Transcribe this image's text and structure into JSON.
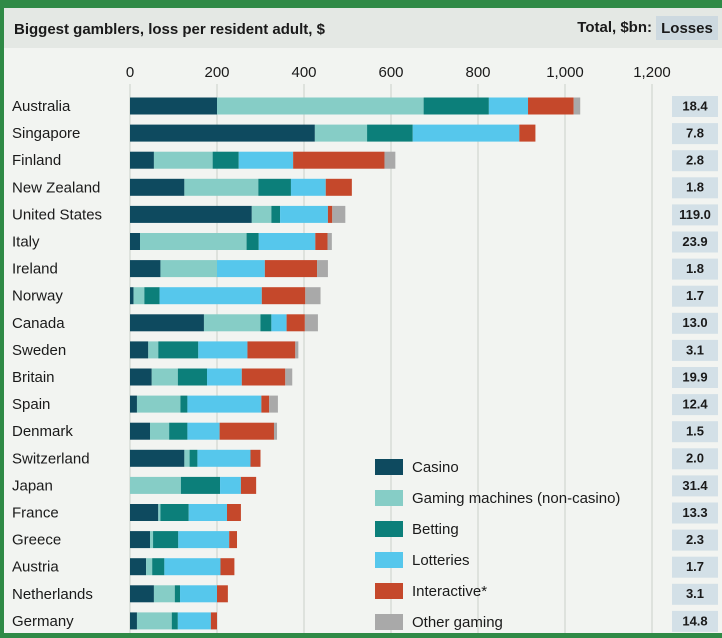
{
  "chart_data": {
    "type": "stacked-bar-horizontal",
    "title": "Biggest gamblers, loss per resident adult, $",
    "categories": [
      "Australia",
      "Singapore",
      "Finland",
      "New Zealand",
      "United States",
      "Italy",
      "Ireland",
      "Norway",
      "Canada",
      "Sweden",
      "Britain",
      "Spain",
      "Denmark",
      "Switzerland",
      "Japan",
      "France",
      "Greece",
      "Austria",
      "Netherlands",
      "Germany"
    ],
    "series": [
      {
        "name": "Casino",
        "color": "#0e4a5f",
        "values": [
          200,
          425,
          55,
          125,
          280,
          23,
          70,
          8,
          170,
          42,
          50,
          16,
          46,
          125,
          0,
          65,
          46,
          37,
          55,
          16
        ]
      },
      {
        "name": "Gaming machines (non-casino)",
        "color": "#86cdc6",
        "values": [
          475,
          120,
          135,
          170,
          45,
          245,
          130,
          25,
          130,
          23,
          60,
          100,
          44,
          12,
          117,
          5,
          7,
          14,
          48,
          80
        ]
      },
      {
        "name": "Betting",
        "color": "#0c7f7a",
        "values": [
          150,
          105,
          60,
          75,
          20,
          28,
          0,
          35,
          25,
          92,
          67,
          16,
          42,
          18,
          90,
          65,
          58,
          28,
          12,
          14
        ]
      },
      {
        "name": "Lotteries",
        "color": "#56c7ec",
        "values": [
          90,
          245,
          125,
          80,
          110,
          130,
          110,
          235,
          35,
          113,
          80,
          170,
          74,
          122,
          48,
          88,
          117,
          129,
          85,
          76
        ]
      },
      {
        "name": "Interactive*",
        "color": "#c5482b",
        "values": [
          105,
          37,
          210,
          60,
          10,
          28,
          120,
          100,
          42,
          110,
          100,
          18,
          125,
          23,
          35,
          32,
          18,
          32,
          25,
          14
        ]
      },
      {
        "name": "Other gaming",
        "color": "#a9a9a9",
        "values": [
          15,
          0,
          25,
          0,
          30,
          10,
          25,
          35,
          30,
          7,
          16,
          20,
          7,
          0,
          0,
          0,
          0,
          0,
          0,
          0
        ]
      }
    ],
    "xlim": [
      0,
      1200
    ],
    "xticks": [
      0,
      200,
      400,
      600,
      800,
      {
        "value": 1000,
        "label": "1,000"
      },
      {
        "value": 1200,
        "label": "1,200"
      }
    ],
    "grid": true,
    "legend": "lower right",
    "totals": {
      "header": "Total, $bn:",
      "label": "Losses",
      "values": [
        18.4,
        7.8,
        2.8,
        1.8,
        119.0,
        23.9,
        1.8,
        1.7,
        13.0,
        3.1,
        19.9,
        12.4,
        1.5,
        2.0,
        31.4,
        13.3,
        2.3,
        1.7,
        3.1,
        14.8
      ],
      "value_labels": [
        "18.4",
        "7.8",
        "2.8",
        "1.8",
        "119.0",
        "23.9",
        "1.8",
        "1.7",
        "13.0",
        "3.1",
        "19.9",
        "12.4",
        "1.5",
        "2.0",
        "31.4",
        "13.3",
        "2.3",
        "1.7",
        "3.1",
        "14.8"
      ]
    }
  }
}
